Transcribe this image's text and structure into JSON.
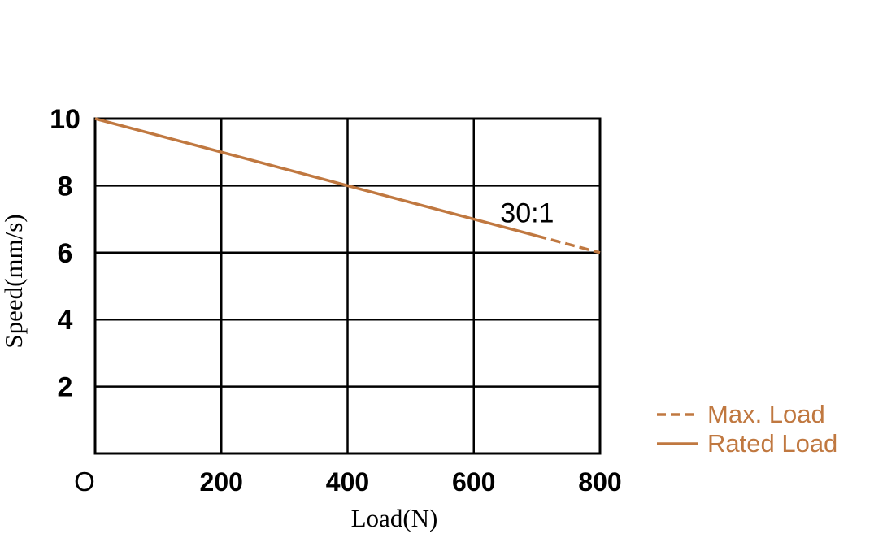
{
  "chart_data": {
    "type": "line",
    "xlabel": "Load(N)",
    "ylabel": "Speed(mm/s)",
    "xlim": [
      0,
      800
    ],
    "ylim": [
      0,
      10
    ],
    "x_ticks": [
      {
        "value": 0,
        "label": "O"
      },
      {
        "value": 200,
        "label": "200"
      },
      {
        "value": 400,
        "label": "400"
      },
      {
        "value": 600,
        "label": "600"
      },
      {
        "value": 800,
        "label": "800"
      }
    ],
    "y_ticks": [
      {
        "value": 2,
        "label": "2"
      },
      {
        "value": 4,
        "label": "4"
      },
      {
        "value": 6,
        "label": "6"
      },
      {
        "value": 8,
        "label": "8"
      },
      {
        "value": 10,
        "label": "10"
      }
    ],
    "grid": true,
    "line_color": "#C07840",
    "series": [
      {
        "name": "Rated Load",
        "style": "solid",
        "x": [
          0,
          700
        ],
        "y": [
          10,
          6.5
        ]
      },
      {
        "name": "Max. Load",
        "style": "dashed",
        "x": [
          700,
          800
        ],
        "y": [
          6.5,
          6
        ]
      }
    ],
    "annotations": [
      {
        "text": "30:1",
        "x": 700,
        "y": 7.2
      }
    ],
    "legend": {
      "placement": "bottom-right",
      "entries": [
        {
          "label": "Max. Load",
          "style": "dashed"
        },
        {
          "label": "Rated Load",
          "style": "solid"
        }
      ]
    }
  }
}
